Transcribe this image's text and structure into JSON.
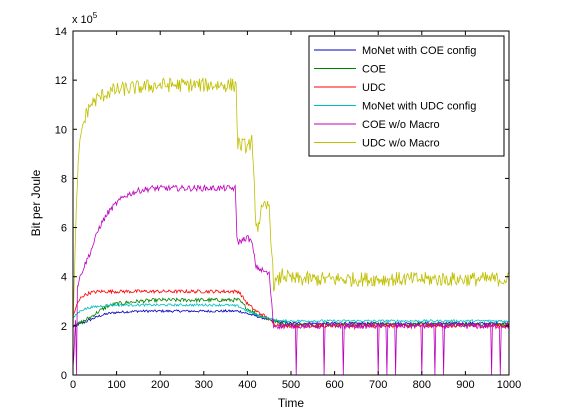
{
  "chart_data": {
    "type": "line",
    "xlabel": "Time",
    "ylabel": "Bit per Joule",
    "y_exponent_label": "x 10",
    "y_exponent_power": "5",
    "xlim": [
      0,
      1000
    ],
    "ylim": [
      0,
      14
    ],
    "y_scale_factor": 100000,
    "x_ticks": [
      "0",
      "100",
      "200",
      "300",
      "400",
      "500",
      "600",
      "700",
      "800",
      "900",
      "1000"
    ],
    "y_ticks": [
      "0",
      "2",
      "4",
      "6",
      "8",
      "10",
      "12",
      "14"
    ],
    "grid": false,
    "legend_position": "top-right",
    "series": [
      {
        "name": "MoNet with COE config",
        "color": "#0000bf",
        "x": [
          0,
          10,
          20,
          40,
          60,
          80,
          100,
          150,
          200,
          250,
          300,
          350,
          380,
          400,
          420,
          440,
          460,
          480,
          500,
          600,
          700,
          800,
          900,
          1000
        ],
        "y": [
          2.0,
          2.05,
          2.1,
          2.25,
          2.4,
          2.5,
          2.55,
          2.6,
          2.6,
          2.6,
          2.6,
          2.6,
          2.6,
          2.5,
          2.4,
          2.3,
          2.2,
          2.15,
          2.1,
          2.1,
          2.1,
          2.1,
          2.1,
          2.1
        ],
        "noise": 0.05
      },
      {
        "name": "COE",
        "color": "#008000",
        "x": [
          0,
          10,
          20,
          40,
          60,
          80,
          100,
          150,
          200,
          250,
          300,
          350,
          380,
          400,
          420,
          440,
          460,
          480,
          500,
          600,
          700,
          800,
          900,
          1000
        ],
        "y": [
          2.0,
          2.05,
          2.15,
          2.35,
          2.6,
          2.8,
          2.9,
          3.0,
          3.05,
          3.05,
          3.05,
          3.05,
          3.05,
          2.7,
          2.5,
          2.35,
          2.2,
          2.1,
          2.05,
          2.05,
          2.05,
          2.05,
          2.05,
          2.05
        ],
        "noise": 0.08
      },
      {
        "name": "UDC",
        "color": "#ff0000",
        "x": [
          0,
          10,
          20,
          40,
          60,
          80,
          100,
          150,
          200,
          250,
          300,
          350,
          380,
          400,
          420,
          440,
          460,
          480,
          500,
          600,
          700,
          800,
          900,
          1000
        ],
        "y": [
          2.4,
          2.9,
          3.2,
          3.35,
          3.4,
          3.4,
          3.4,
          3.4,
          3.4,
          3.4,
          3.4,
          3.4,
          3.4,
          2.9,
          2.6,
          2.4,
          2.1,
          2.0,
          2.0,
          2.0,
          2.0,
          2.0,
          2.0,
          2.0
        ],
        "noise": 0.07
      },
      {
        "name": "MoNet with UDC config",
        "color": "#00bfbf",
        "x": [
          0,
          10,
          20,
          40,
          60,
          80,
          100,
          150,
          200,
          250,
          300,
          350,
          380,
          400,
          420,
          440,
          460,
          480,
          500,
          600,
          700,
          800,
          900,
          1000
        ],
        "y": [
          2.3,
          2.5,
          2.65,
          2.75,
          2.8,
          2.85,
          2.85,
          2.85,
          2.85,
          2.85,
          2.85,
          2.85,
          2.8,
          2.6,
          2.45,
          2.35,
          2.25,
          2.2,
          2.2,
          2.2,
          2.2,
          2.2,
          2.2,
          2.2
        ],
        "noise": 0.05
      },
      {
        "name": "COE w/o Macro",
        "color": "#bf00bf",
        "x": [
          0,
          5,
          10,
          20,
          30,
          40,
          50,
          60,
          80,
          100,
          120,
          150,
          180,
          200,
          250,
          300,
          350,
          372,
          376,
          380,
          400,
          410,
          420,
          430,
          440,
          450,
          460,
          465,
          470,
          480,
          500,
          600,
          700,
          800,
          900,
          1000
        ],
        "y": [
          0.2,
          2.0,
          3.6,
          4.2,
          4.6,
          5.0,
          5.5,
          6.0,
          6.6,
          7.0,
          7.3,
          7.5,
          7.6,
          7.6,
          7.6,
          7.6,
          7.6,
          7.6,
          5.6,
          5.4,
          5.6,
          5.4,
          4.4,
          4.3,
          4.2,
          4.1,
          2.0,
          2.0,
          2.0,
          2.0,
          2.0,
          2.0,
          2.0,
          2.0,
          2.0,
          2.0
        ],
        "noise": 0.12,
        "dropouts": [
          8,
          455,
          475,
          487,
          512,
          555,
          576,
          585,
          620,
          700,
          720,
          740,
          755,
          800,
          830,
          850,
          875,
          905,
          960,
          980
        ]
      },
      {
        "name": "UDC w/o Macro",
        "color": "#bfbf00",
        "x": [
          0,
          5,
          10,
          15,
          20,
          30,
          40,
          60,
          80,
          100,
          150,
          200,
          250,
          300,
          350,
          374,
          378,
          400,
          410,
          420,
          425,
          430,
          440,
          450,
          460,
          470,
          480,
          500,
          600,
          700,
          800,
          900,
          1000
        ],
        "y": [
          2.0,
          5.0,
          8.0,
          9.2,
          10.0,
          10.6,
          11.0,
          11.3,
          11.5,
          11.6,
          11.7,
          11.8,
          11.8,
          11.8,
          11.8,
          11.8,
          9.4,
          9.3,
          9.5,
          6.2,
          6.0,
          6.6,
          6.8,
          6.9,
          3.7,
          3.8,
          4.1,
          3.9,
          3.9,
          3.9,
          3.9,
          3.9,
          3.9
        ],
        "noise": 0.3
      }
    ]
  }
}
